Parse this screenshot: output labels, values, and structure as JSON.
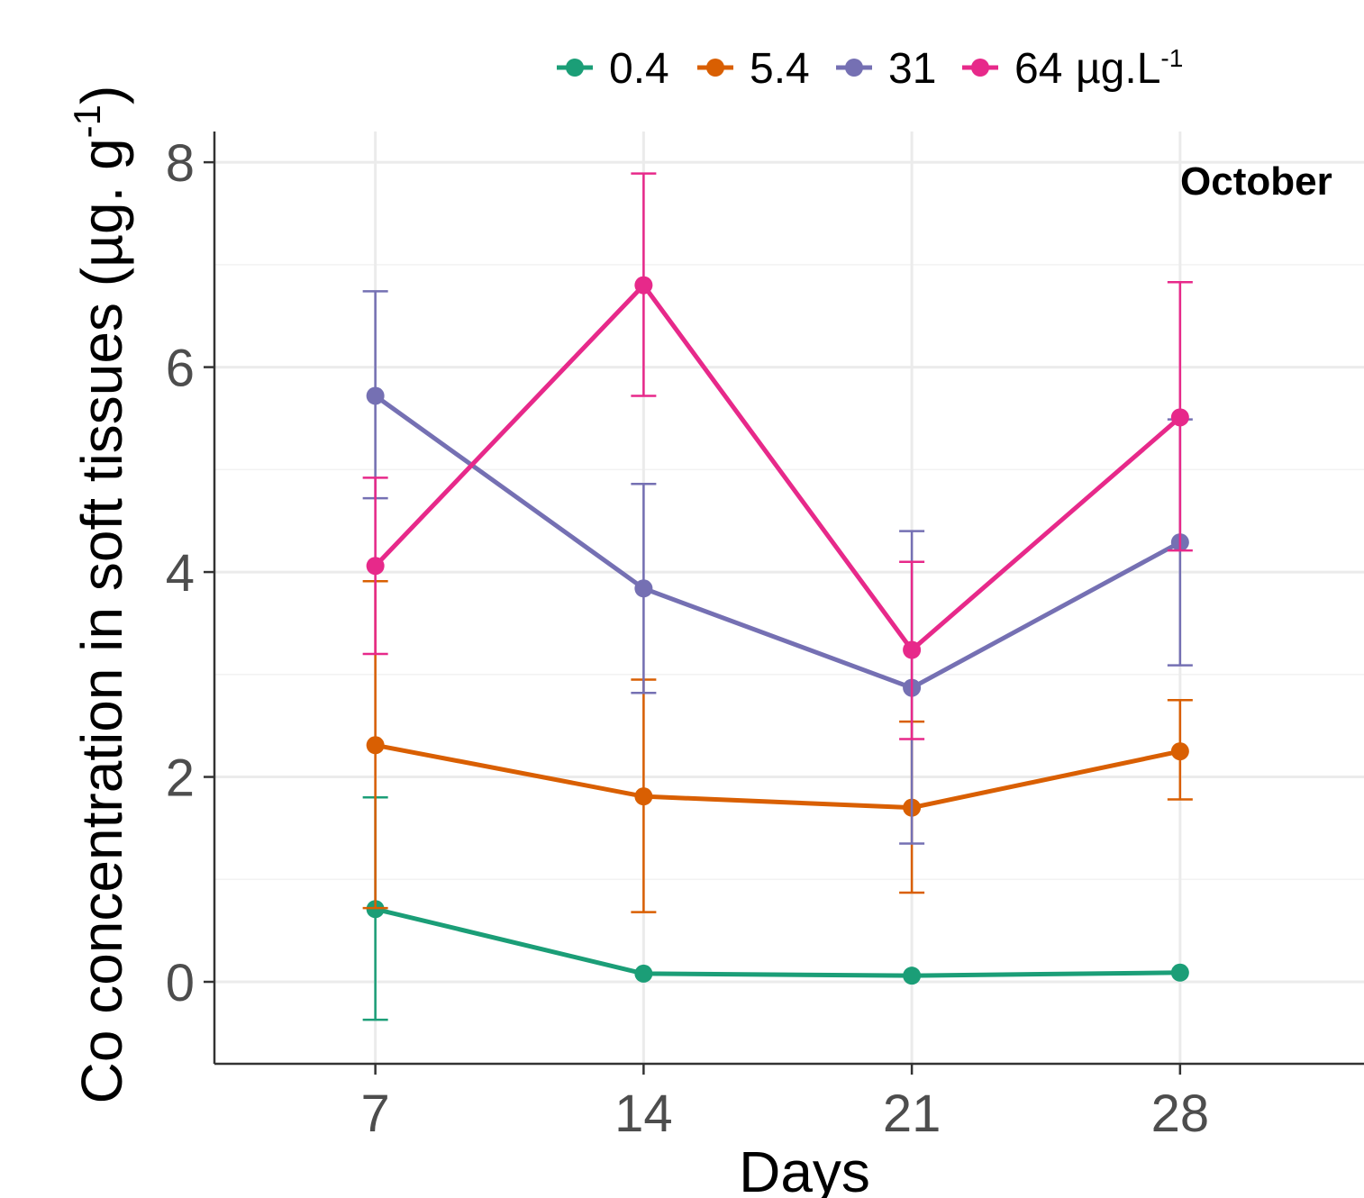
{
  "chart_data": {
    "type": "line",
    "annotation": "October",
    "xlabel": "Days",
    "ylabel": {
      "main": "Co concentration in soft tissues (µg. g",
      "superscript": "-1",
      "close": ")"
    },
    "x": [
      7,
      14,
      21,
      28
    ],
    "x_tick_labels": [
      "7",
      "14",
      "21",
      "28"
    ],
    "y_tick_labels": [
      "0",
      "2",
      "4",
      "6",
      "8"
    ],
    "ylim": [
      -0.8,
      8.3
    ],
    "xlim": [
      2.8,
      32.8
    ],
    "grid": true,
    "legend": {
      "placement": "top",
      "unit": "µg.L",
      "unit_superscript": "-1"
    },
    "series": [
      {
        "name": "0.4",
        "color": "#1b9e77",
        "values": [
          0.71,
          0.08,
          0.06,
          0.09
        ],
        "error_low": [
          -0.37,
          null,
          null,
          null
        ],
        "error_high": [
          1.8,
          null,
          null,
          null
        ]
      },
      {
        "name": "5.4",
        "color": "#d95f02",
        "values": [
          2.31,
          1.81,
          1.7,
          2.25
        ],
        "error_low": [
          0.72,
          0.68,
          0.87,
          1.78
        ],
        "error_high": [
          3.91,
          2.95,
          2.54,
          2.75
        ]
      },
      {
        "name": "31",
        "color": "#7570b3",
        "values": [
          5.72,
          3.84,
          2.87,
          4.29
        ],
        "error_low": [
          4.72,
          2.82,
          1.35,
          3.09
        ],
        "error_high": [
          6.74,
          4.86,
          4.4,
          5.49
        ]
      },
      {
        "name": "64",
        "color": "#e7298a",
        "values": [
          4.06,
          6.8,
          3.24,
          5.51
        ],
        "error_low": [
          3.2,
          5.72,
          2.37,
          4.21
        ],
        "error_high": [
          4.92,
          7.89,
          4.1,
          6.83
        ]
      }
    ]
  }
}
